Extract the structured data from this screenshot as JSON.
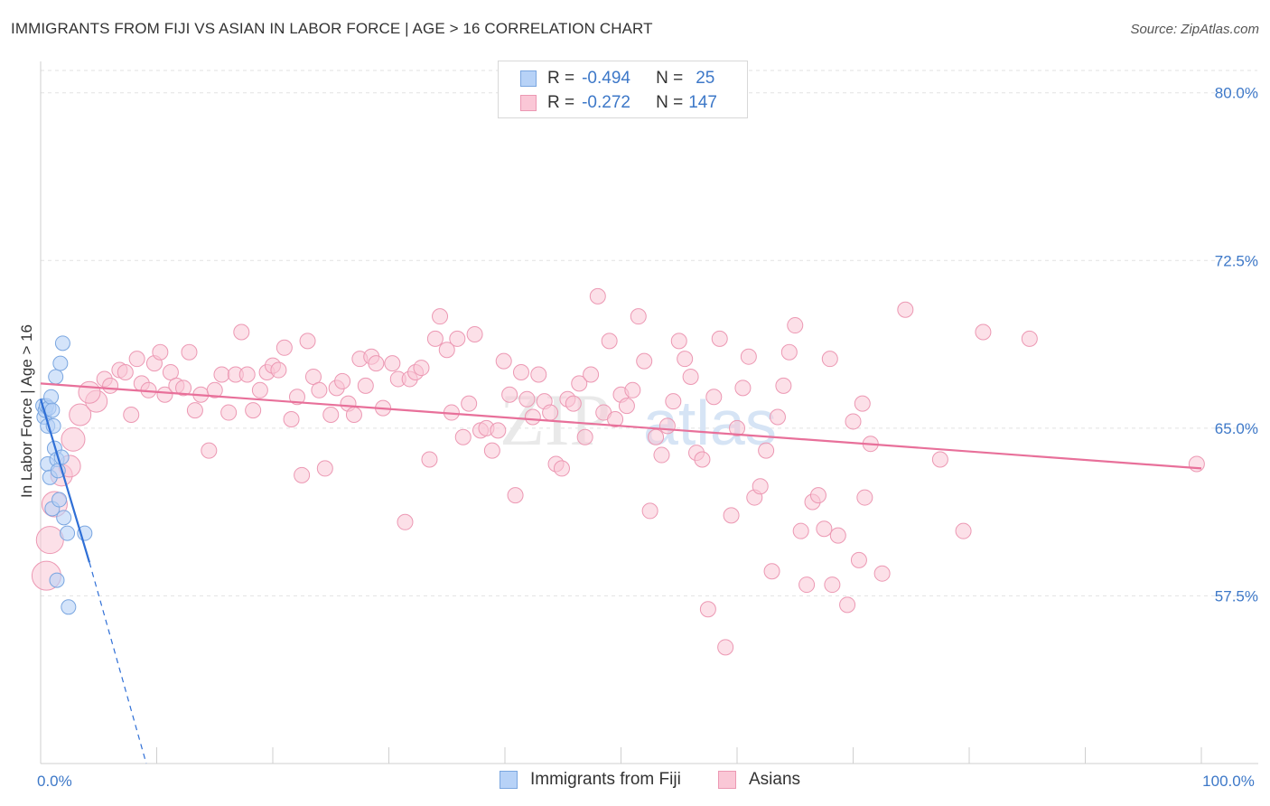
{
  "title": "IMMIGRANTS FROM FIJI VS ASIAN IN LABOR FORCE | AGE > 16 CORRELATION CHART",
  "source": "Source: ZipAtlas.com",
  "watermark": {
    "zip": "ZIP",
    "atlas": "atlas"
  },
  "legend": {
    "r_label": "R =",
    "n_label": "N =",
    "rows": [
      {
        "r": "-0.494",
        "n": "25",
        "color": "#b7d2f7",
        "border": "#7aa6e0"
      },
      {
        "r": "-0.272",
        "n": "147",
        "color": "#fac7d6",
        "border": "#ec98b3"
      }
    ]
  },
  "bottom_legend": [
    {
      "label": "Immigrants from Fiji",
      "color": "#b7d2f7",
      "border": "#7aa6e0"
    },
    {
      "label": "Asians",
      "color": "#fac7d6",
      "border": "#ec98b3"
    }
  ],
  "chart_data": {
    "type": "scatter",
    "title": "IMMIGRANTS FROM FIJI VS ASIAN IN LABOR FORCE | AGE > 16 CORRELATION CHART",
    "xlabel": "",
    "ylabel": "In Labor Force | Age > 16",
    "xlim": [
      0,
      100
    ],
    "ylim": [
      50,
      81
    ],
    "x_tick_labels": [
      {
        "value": 0,
        "label": "0.0%"
      },
      {
        "value": 100,
        "label": "100.0%"
      }
    ],
    "y_ticks": [
      {
        "value": 57.5,
        "label": "57.5%"
      },
      {
        "value": 65.0,
        "label": "65.0%"
      },
      {
        "value": 72.5,
        "label": "72.5%"
      },
      {
        "value": 80.0,
        "label": "80.0%"
      }
    ],
    "series": [
      {
        "name": "Immigrants from Fiji",
        "color": "#b7d2f7",
        "stroke": "#7aa6e0",
        "trend_color": "#2f6fd6",
        "trend": {
          "x0": 0.0,
          "y0": 66.3,
          "x1": 4.2,
          "y1": 59.0,
          "dash_to_x": 9.1,
          "dash_to_y": 50.0
        },
        "points": [
          {
            "x": 0.2,
            "y": 66.0
          },
          {
            "x": 0.3,
            "y": 65.5
          },
          {
            "x": 0.4,
            "y": 65.8
          },
          {
            "x": 0.5,
            "y": 66.0
          },
          {
            "x": 0.6,
            "y": 65.1
          },
          {
            "x": 0.7,
            "y": 65.9
          },
          {
            "x": 0.9,
            "y": 66.4
          },
          {
            "x": 1.0,
            "y": 65.8
          },
          {
            "x": 1.1,
            "y": 65.1
          },
          {
            "x": 1.3,
            "y": 67.3
          },
          {
            "x": 1.7,
            "y": 67.9
          },
          {
            "x": 1.9,
            "y": 68.8
          },
          {
            "x": 0.6,
            "y": 63.4
          },
          {
            "x": 0.8,
            "y": 62.8
          },
          {
            "x": 1.2,
            "y": 64.1
          },
          {
            "x": 1.4,
            "y": 63.6
          },
          {
            "x": 1.5,
            "y": 63.1
          },
          {
            "x": 1.8,
            "y": 63.7
          },
          {
            "x": 1.0,
            "y": 61.4
          },
          {
            "x": 1.6,
            "y": 61.8
          },
          {
            "x": 2.0,
            "y": 61.0
          },
          {
            "x": 2.3,
            "y": 60.3
          },
          {
            "x": 3.8,
            "y": 60.3
          },
          {
            "x": 1.4,
            "y": 58.2
          },
          {
            "x": 2.4,
            "y": 57.0
          }
        ]
      },
      {
        "name": "Asians",
        "color": "#fac7d6",
        "stroke": "#ec98b3",
        "trend_color": "#e8709a",
        "trend": {
          "x0": 0.0,
          "y0": 67.0,
          "x1": 100.0,
          "y1": 63.2
        },
        "points": [
          {
            "x": 0.5,
            "y": 58.4,
            "r": 16
          },
          {
            "x": 0.8,
            "y": 60.0,
            "r": 15
          },
          {
            "x": 1.2,
            "y": 61.6,
            "r": 14
          },
          {
            "x": 1.8,
            "y": 62.9,
            "r": 12
          },
          {
            "x": 2.5,
            "y": 63.3,
            "r": 12
          },
          {
            "x": 2.8,
            "y": 64.5,
            "r": 13
          },
          {
            "x": 3.4,
            "y": 65.6,
            "r": 12
          },
          {
            "x": 4.8,
            "y": 66.2,
            "r": 12
          },
          {
            "x": 4.2,
            "y": 66.6,
            "r": 12
          },
          {
            "x": 5.5,
            "y": 67.2
          },
          {
            "x": 6.0,
            "y": 66.9
          },
          {
            "x": 6.8,
            "y": 67.6
          },
          {
            "x": 7.3,
            "y": 67.5
          },
          {
            "x": 7.8,
            "y": 65.6
          },
          {
            "x": 8.3,
            "y": 68.1
          },
          {
            "x": 8.7,
            "y": 67.0
          },
          {
            "x": 9.3,
            "y": 66.7
          },
          {
            "x": 9.8,
            "y": 67.9
          },
          {
            "x": 10.3,
            "y": 68.4
          },
          {
            "x": 10.7,
            "y": 66.5
          },
          {
            "x": 11.2,
            "y": 67.5
          },
          {
            "x": 11.7,
            "y": 66.9
          },
          {
            "x": 12.3,
            "y": 66.8
          },
          {
            "x": 12.8,
            "y": 68.4
          },
          {
            "x": 13.3,
            "y": 65.8
          },
          {
            "x": 13.8,
            "y": 66.5
          },
          {
            "x": 14.5,
            "y": 64.0
          },
          {
            "x": 15.0,
            "y": 66.7
          },
          {
            "x": 15.6,
            "y": 67.4
          },
          {
            "x": 16.2,
            "y": 65.7
          },
          {
            "x": 16.8,
            "y": 67.4
          },
          {
            "x": 17.3,
            "y": 69.3
          },
          {
            "x": 17.8,
            "y": 67.4
          },
          {
            "x": 18.3,
            "y": 65.8
          },
          {
            "x": 18.9,
            "y": 66.7
          },
          {
            "x": 19.5,
            "y": 67.5
          },
          {
            "x": 20.0,
            "y": 67.8
          },
          {
            "x": 20.5,
            "y": 67.6
          },
          {
            "x": 21.0,
            "y": 68.6
          },
          {
            "x": 21.6,
            "y": 65.4
          },
          {
            "x": 22.1,
            "y": 66.4
          },
          {
            "x": 22.5,
            "y": 62.9
          },
          {
            "x": 23.0,
            "y": 68.9
          },
          {
            "x": 23.5,
            "y": 67.3
          },
          {
            "x": 24.0,
            "y": 66.7
          },
          {
            "x": 24.5,
            "y": 63.2
          },
          {
            "x": 25.0,
            "y": 65.6
          },
          {
            "x": 25.5,
            "y": 66.8
          },
          {
            "x": 26.0,
            "y": 67.1
          },
          {
            "x": 26.5,
            "y": 66.1
          },
          {
            "x": 27.0,
            "y": 65.6
          },
          {
            "x": 27.5,
            "y": 68.1
          },
          {
            "x": 28.0,
            "y": 66.9
          },
          {
            "x": 28.5,
            "y": 68.2
          },
          {
            "x": 28.9,
            "y": 67.9
          },
          {
            "x": 29.5,
            "y": 65.9
          },
          {
            "x": 30.3,
            "y": 67.9
          },
          {
            "x": 30.8,
            "y": 67.2
          },
          {
            "x": 31.4,
            "y": 60.8
          },
          {
            "x": 31.8,
            "y": 67.2
          },
          {
            "x": 32.3,
            "y": 67.5
          },
          {
            "x": 32.8,
            "y": 67.7
          },
          {
            "x": 33.5,
            "y": 63.6
          },
          {
            "x": 34.0,
            "y": 69.0
          },
          {
            "x": 34.4,
            "y": 70.0
          },
          {
            "x": 35.0,
            "y": 68.5
          },
          {
            "x": 35.4,
            "y": 65.7
          },
          {
            "x": 35.9,
            "y": 69.0
          },
          {
            "x": 36.4,
            "y": 64.6
          },
          {
            "x": 36.9,
            "y": 66.1
          },
          {
            "x": 37.4,
            "y": 69.2
          },
          {
            "x": 37.9,
            "y": 64.9
          },
          {
            "x": 38.4,
            "y": 65.0
          },
          {
            "x": 38.9,
            "y": 64.0
          },
          {
            "x": 39.4,
            "y": 64.9
          },
          {
            "x": 39.9,
            "y": 68.0
          },
          {
            "x": 40.4,
            "y": 66.5
          },
          {
            "x": 40.9,
            "y": 62.0
          },
          {
            "x": 41.4,
            "y": 67.5
          },
          {
            "x": 41.9,
            "y": 66.3
          },
          {
            "x": 42.4,
            "y": 65.5
          },
          {
            "x": 42.9,
            "y": 67.4
          },
          {
            "x": 43.4,
            "y": 66.2
          },
          {
            "x": 43.9,
            "y": 65.7
          },
          {
            "x": 44.4,
            "y": 63.4
          },
          {
            "x": 44.9,
            "y": 63.2
          },
          {
            "x": 45.4,
            "y": 66.3
          },
          {
            "x": 45.9,
            "y": 66.1
          },
          {
            "x": 46.4,
            "y": 67.0
          },
          {
            "x": 46.9,
            "y": 64.6
          },
          {
            "x": 47.4,
            "y": 67.4
          },
          {
            "x": 48.0,
            "y": 70.9
          },
          {
            "x": 48.5,
            "y": 65.7
          },
          {
            "x": 49.0,
            "y": 68.9
          },
          {
            "x": 49.5,
            "y": 65.4
          },
          {
            "x": 50.0,
            "y": 66.5
          },
          {
            "x": 50.5,
            "y": 66.0
          },
          {
            "x": 51.0,
            "y": 66.7
          },
          {
            "x": 51.5,
            "y": 70.0
          },
          {
            "x": 52.0,
            "y": 68.0
          },
          {
            "x": 52.5,
            "y": 61.3
          },
          {
            "x": 53.0,
            "y": 64.6
          },
          {
            "x": 53.5,
            "y": 63.8
          },
          {
            "x": 54.0,
            "y": 65.1
          },
          {
            "x": 54.5,
            "y": 66.2
          },
          {
            "x": 55.0,
            "y": 68.9
          },
          {
            "x": 55.5,
            "y": 68.1
          },
          {
            "x": 56.0,
            "y": 67.3
          },
          {
            "x": 56.5,
            "y": 63.9
          },
          {
            "x": 57.0,
            "y": 63.6
          },
          {
            "x": 57.5,
            "y": 56.9
          },
          {
            "x": 58.0,
            "y": 66.4
          },
          {
            "x": 58.5,
            "y": 69.0
          },
          {
            "x": 59.0,
            "y": 55.2
          },
          {
            "x": 59.5,
            "y": 61.1
          },
          {
            "x": 60.0,
            "y": 65.0
          },
          {
            "x": 60.5,
            "y": 66.8
          },
          {
            "x": 61.0,
            "y": 68.2
          },
          {
            "x": 61.5,
            "y": 61.9
          },
          {
            "x": 62.0,
            "y": 62.4
          },
          {
            "x": 62.5,
            "y": 64.0
          },
          {
            "x": 63.0,
            "y": 58.6
          },
          {
            "x": 63.5,
            "y": 65.5
          },
          {
            "x": 64.0,
            "y": 66.9
          },
          {
            "x": 64.5,
            "y": 68.4
          },
          {
            "x": 65.0,
            "y": 69.6
          },
          {
            "x": 65.5,
            "y": 60.4
          },
          {
            "x": 66.0,
            "y": 58.0
          },
          {
            "x": 66.5,
            "y": 61.7
          },
          {
            "x": 67.0,
            "y": 62.0
          },
          {
            "x": 67.5,
            "y": 60.5
          },
          {
            "x": 68.0,
            "y": 68.1
          },
          {
            "x": 68.2,
            "y": 58.0
          },
          {
            "x": 68.7,
            "y": 60.2
          },
          {
            "x": 69.5,
            "y": 57.1
          },
          {
            "x": 70.0,
            "y": 65.3
          },
          {
            "x": 70.5,
            "y": 59.1
          },
          {
            "x": 70.8,
            "y": 66.1
          },
          {
            "x": 71.0,
            "y": 61.9
          },
          {
            "x": 71.5,
            "y": 64.3
          },
          {
            "x": 72.5,
            "y": 58.5
          },
          {
            "x": 74.5,
            "y": 70.3
          },
          {
            "x": 77.5,
            "y": 63.6
          },
          {
            "x": 79.5,
            "y": 60.4
          },
          {
            "x": 81.2,
            "y": 69.3
          },
          {
            "x": 85.2,
            "y": 69.0
          },
          {
            "x": 99.6,
            "y": 63.4
          }
        ]
      }
    ]
  }
}
